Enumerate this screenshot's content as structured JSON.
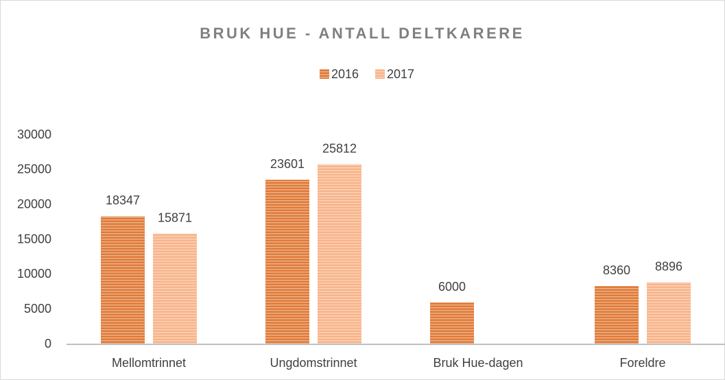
{
  "chart_data": {
    "type": "bar",
    "title": "BRUK HUE - ANTALL DELTKARERE",
    "categories": [
      "Mellomtrinnet",
      "Ungdomstrinnet",
      "Bruk Hue-dagen",
      "Foreldre"
    ],
    "series": [
      {
        "name": "2016",
        "color": "#e07b39",
        "values": [
          18347,
          23601,
          6000,
          8360
        ]
      },
      {
        "name": "2017",
        "color": "#f8b48a",
        "values": [
          15871,
          25812,
          null,
          8896
        ]
      }
    ],
    "ylim": [
      0,
      30000
    ],
    "yticks": [
      0,
      5000,
      10000,
      15000,
      20000,
      25000,
      30000
    ],
    "grid": false,
    "legend": "top"
  }
}
